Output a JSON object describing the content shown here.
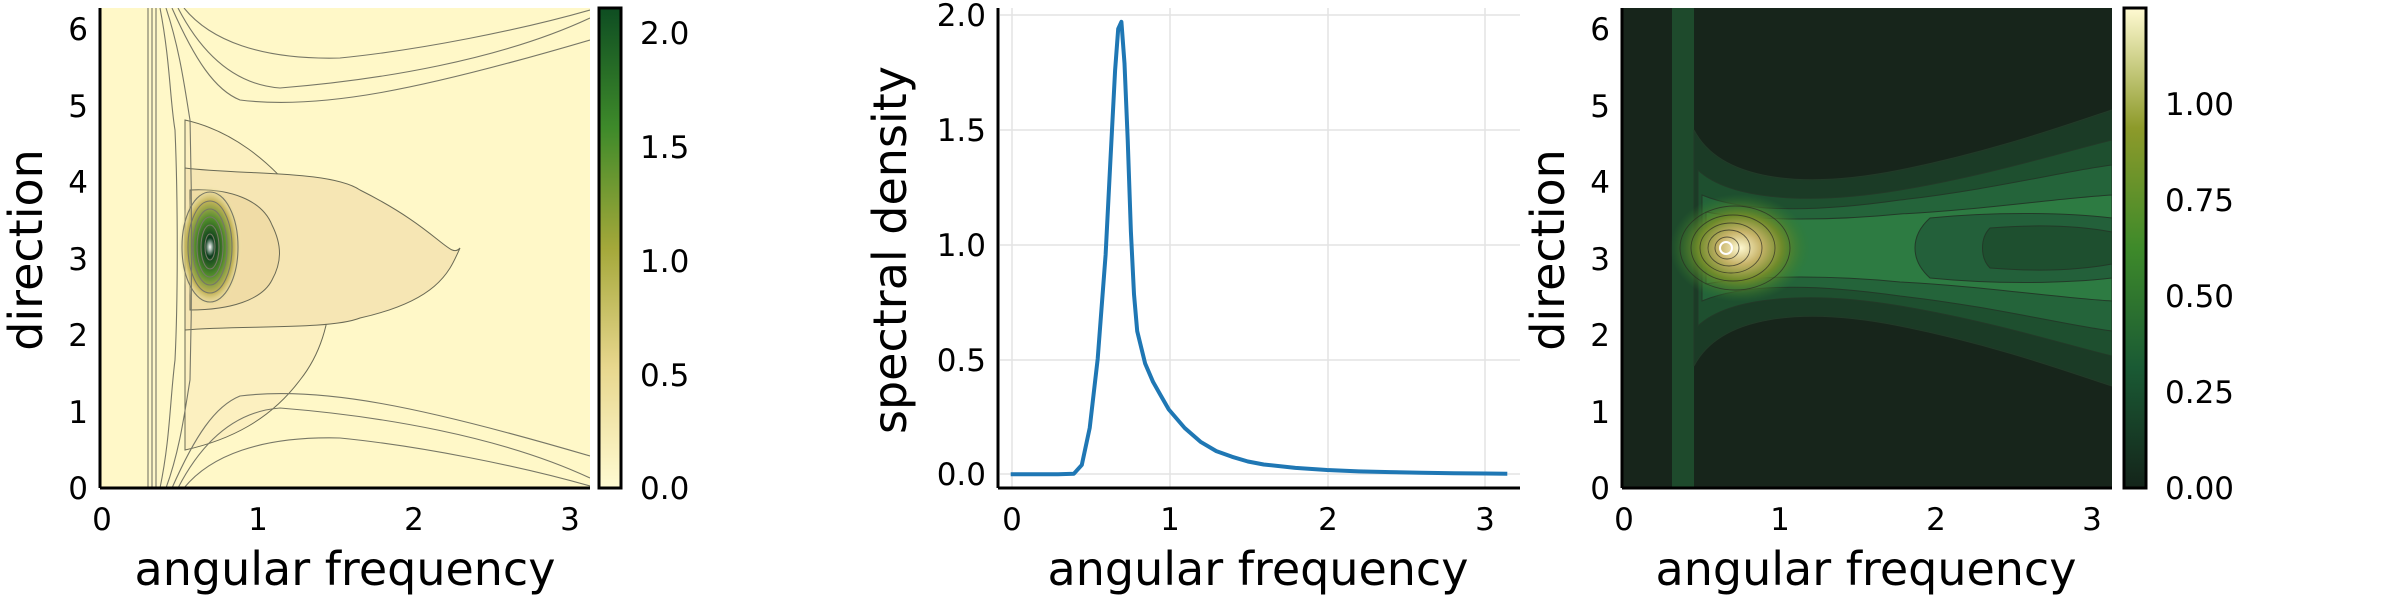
{
  "chart_data": [
    {
      "type": "heatmap",
      "subtype": "filled contour",
      "xlabel": "angular frequency",
      "ylabel": "direction",
      "xlim": [
        0,
        3.1416
      ],
      "ylim": [
        0,
        6.2832
      ],
      "xticks": [
        "0",
        "1",
        "2",
        "3"
      ],
      "yticks": [
        "0",
        "1",
        "2",
        "3",
        "4",
        "5",
        "6"
      ],
      "colorbar": {
        "colormap": "speed (light yellow to dark green)",
        "range": [
          0,
          2.1
        ],
        "ticks": [
          "0.0",
          "0.5",
          "1.0",
          "1.5",
          "2.0"
        ]
      },
      "peak": {
        "x": 0.7,
        "y": 3.1416,
        "value": 2.1
      }
    },
    {
      "type": "line",
      "xlabel": "angular frequency",
      "ylabel": "spectral density",
      "xlim": [
        -0.08,
        3.22
      ],
      "ylim": [
        -0.06,
        2.02
      ],
      "xticks": [
        "0",
        "1",
        "2",
        "3"
      ],
      "yticks": [
        "0.0",
        "0.5",
        "1.0",
        "1.5",
        "2.0"
      ],
      "grid": true,
      "color": "#1f77b4",
      "series": [
        {
          "x": [
            0.0,
            0.1,
            0.2,
            0.3,
            0.4,
            0.45,
            0.5,
            0.55,
            0.6,
            0.63,
            0.66,
            0.68,
            0.7,
            0.72,
            0.74,
            0.76,
            0.78,
            0.8,
            0.85,
            0.9,
            0.95,
            1.0,
            1.1,
            1.2,
            1.3,
            1.4,
            1.5,
            1.6,
            1.8,
            2.0,
            2.2,
            2.4,
            2.6,
            2.8,
            3.0,
            3.14
          ],
          "y": [
            0.0,
            0.0,
            0.0,
            0.0,
            0.002,
            0.04,
            0.2,
            0.5,
            0.95,
            1.35,
            1.75,
            1.93,
            1.96,
            1.78,
            1.45,
            1.05,
            0.78,
            0.62,
            0.48,
            0.4,
            0.34,
            0.28,
            0.2,
            0.14,
            0.1,
            0.075,
            0.055,
            0.042,
            0.027,
            0.018,
            0.012,
            0.009,
            0.006,
            0.004,
            0.003,
            0.002
          ]
        }
      ]
    },
    {
      "type": "heatmap",
      "subtype": "filled contour",
      "xlabel": "angular frequency",
      "ylabel": "direction",
      "xlim": [
        0,
        3.1416
      ],
      "ylim": [
        0,
        6.2832
      ],
      "xticks": [
        "0",
        "1",
        "2",
        "3"
      ],
      "yticks": [
        "0",
        "1",
        "2",
        "3",
        "4",
        "5",
        "6"
      ],
      "colorbar": {
        "colormap": "speed reversed (dark green to light yellow)",
        "range": [
          0,
          1.25
        ],
        "ticks": [
          "0.00",
          "0.25",
          "0.50",
          "0.75",
          "1.00"
        ]
      },
      "peak": {
        "x": 0.67,
        "y": 3.1416,
        "value": 1.25
      }
    }
  ]
}
